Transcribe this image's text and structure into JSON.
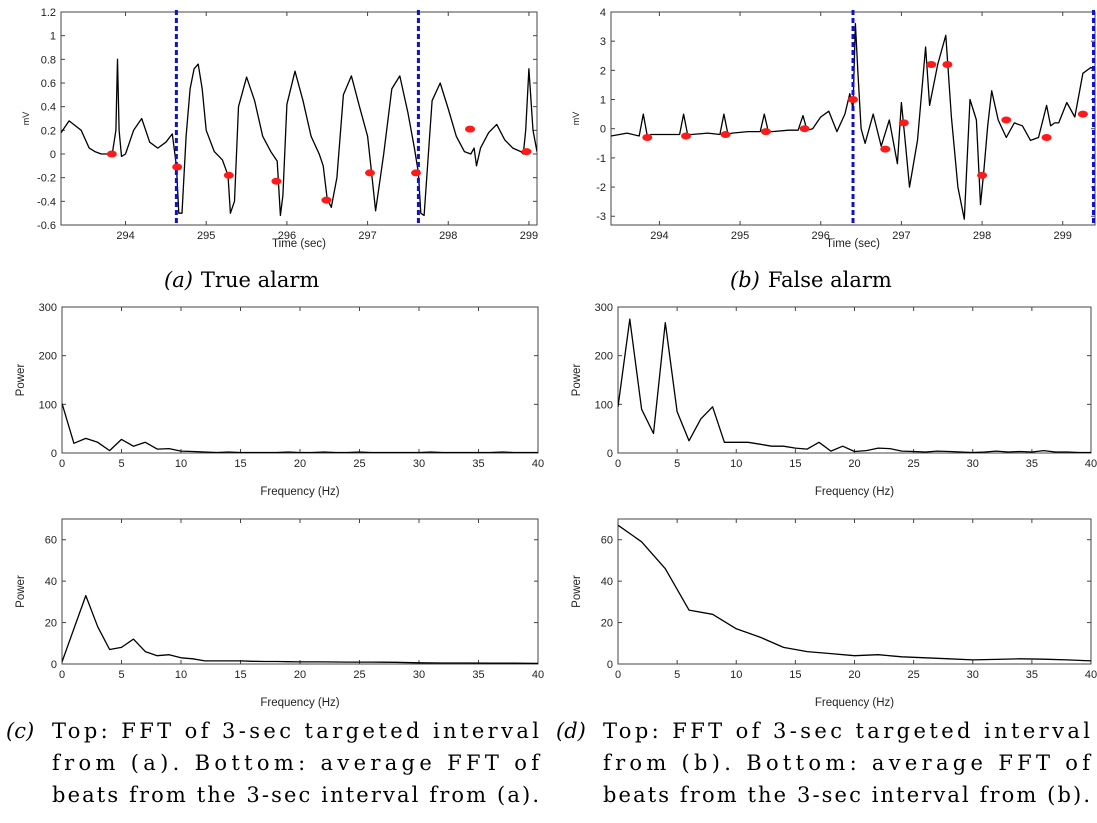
{
  "chart_data": [
    {
      "id": "a",
      "type": "line",
      "caption_label": "(a)",
      "caption": "True alarm",
      "xlabel": "Time (sec)",
      "ylabel": "mV",
      "xlim": [
        293.2,
        299.1
      ],
      "ylim": [
        -0.6,
        1.2
      ],
      "xticks": [
        294,
        295,
        296,
        297,
        298,
        299
      ],
      "yticks": [
        -0.6,
        -0.4,
        -0.2,
        0,
        0.2,
        0.4,
        0.6,
        0.8,
        1,
        1.2
      ],
      "line_color": "#000000",
      "alarm_window": [
        294.63,
        297.63
      ],
      "alarm_color": "#1010d0",
      "signal": {
        "x": [
          293.2,
          293.3,
          293.45,
          293.55,
          293.62,
          293.7,
          293.78,
          293.84,
          293.88,
          293.9,
          293.92,
          293.95,
          294.0,
          294.1,
          294.2,
          294.3,
          294.4,
          294.5,
          294.58,
          294.63,
          294.66,
          294.7,
          294.75,
          294.8,
          294.85,
          294.9,
          294.95,
          295.0,
          295.1,
          295.2,
          295.27,
          295.3,
          295.35,
          295.4,
          295.5,
          295.6,
          295.7,
          295.8,
          295.88,
          295.92,
          295.95,
          296.0,
          296.1,
          296.2,
          296.3,
          296.4,
          296.45,
          296.5,
          296.55,
          296.62,
          296.7,
          296.8,
          296.9,
          297.0,
          297.05,
          297.1,
          297.2,
          297.3,
          297.4,
          297.5,
          297.58,
          297.63,
          297.66,
          297.7,
          297.8,
          297.9,
          298.0,
          298.1,
          298.2,
          298.28,
          298.32,
          298.35,
          298.4,
          298.5,
          298.6,
          298.7,
          298.8,
          298.9,
          298.93,
          298.96,
          299.0,
          299.05,
          299.1
        ],
        "y": [
          0.18,
          0.28,
          0.2,
          0.05,
          0.02,
          0.0,
          0.0,
          0.02,
          0.2,
          0.8,
          0.2,
          -0.02,
          0.0,
          0.2,
          0.3,
          0.1,
          0.05,
          0.1,
          0.17,
          -0.1,
          -0.5,
          -0.5,
          0.15,
          0.55,
          0.72,
          0.76,
          0.55,
          0.2,
          0.02,
          -0.05,
          -0.18,
          -0.5,
          -0.4,
          0.4,
          0.65,
          0.45,
          0.15,
          0.02,
          -0.06,
          -0.52,
          -0.35,
          0.42,
          0.7,
          0.45,
          0.15,
          0.0,
          -0.1,
          -0.38,
          -0.45,
          -0.2,
          0.5,
          0.66,
          0.4,
          0.15,
          -0.16,
          -0.48,
          0.0,
          0.55,
          0.66,
          0.35,
          0.05,
          -0.16,
          -0.5,
          -0.52,
          0.45,
          0.6,
          0.38,
          0.15,
          0.02,
          0.0,
          0.05,
          -0.1,
          0.05,
          0.18,
          0.25,
          0.12,
          0.05,
          0.02,
          0.0,
          0.2,
          0.72,
          0.2,
          0.02
        ]
      },
      "markers": {
        "x": [
          293.83,
          294.64,
          295.28,
          295.87,
          296.49,
          297.03,
          297.6,
          298.27,
          298.97
        ],
        "y": [
          0.0,
          -0.11,
          -0.18,
          -0.23,
          -0.39,
          -0.16,
          -0.16,
          0.21,
          0.02
        ],
        "color": "#ff1a1a"
      }
    },
    {
      "id": "b",
      "type": "line",
      "caption_label": "(b)",
      "caption": "False alarm",
      "xlabel": "Time (sec)",
      "ylabel": "mV",
      "xlim": [
        293.4,
        299.4
      ],
      "ylim": [
        -3.3,
        4
      ],
      "xticks": [
        294,
        295,
        296,
        297,
        298,
        299
      ],
      "yticks": [
        -3,
        -2,
        -1,
        0,
        1,
        2,
        3,
        4
      ],
      "line_color": "#000000",
      "alarm_window": [
        296.4,
        299.4
      ],
      "alarm_color": "#1010d0",
      "signal": {
        "x": [
          293.4,
          293.6,
          293.75,
          293.8,
          293.85,
          293.9,
          294.1,
          294.25,
          294.3,
          294.35,
          294.4,
          294.6,
          294.75,
          294.8,
          294.85,
          294.9,
          295.1,
          295.25,
          295.3,
          295.35,
          295.4,
          295.6,
          295.72,
          295.78,
          295.83,
          295.9,
          296.0,
          296.1,
          296.2,
          296.3,
          296.36,
          296.4,
          296.43,
          296.46,
          296.5,
          296.55,
          296.65,
          296.75,
          296.85,
          296.95,
          297.0,
          297.05,
          297.1,
          297.2,
          297.3,
          297.35,
          297.45,
          297.55,
          297.62,
          297.7,
          297.78,
          297.85,
          297.93,
          297.98,
          298.02,
          298.07,
          298.12,
          298.2,
          298.3,
          298.4,
          298.5,
          298.6,
          298.7,
          298.8,
          298.85,
          298.9,
          298.95,
          299.05,
          299.15,
          299.25,
          299.35,
          299.4
        ],
        "y": [
          -0.25,
          -0.15,
          -0.25,
          0.5,
          -0.25,
          -0.2,
          -0.2,
          -0.2,
          0.5,
          -0.2,
          -0.2,
          -0.15,
          -0.2,
          0.5,
          -0.2,
          -0.15,
          -0.1,
          -0.1,
          0.5,
          -0.1,
          -0.1,
          -0.05,
          -0.05,
          0.45,
          -0.05,
          0.0,
          0.4,
          0.6,
          -0.1,
          0.5,
          1.2,
          0.7,
          3.6,
          2.0,
          0.0,
          -0.5,
          0.5,
          -0.6,
          0.3,
          -1.2,
          0.9,
          -0.5,
          -2.0,
          -0.4,
          2.8,
          0.8,
          2.2,
          3.2,
          0.4,
          -2.0,
          -3.1,
          1.0,
          0.3,
          -2.6,
          -1.5,
          0.1,
          1.3,
          0.3,
          -0.3,
          0.2,
          0.1,
          -0.4,
          -0.3,
          0.8,
          0.1,
          0.2,
          0.2,
          0.9,
          0.4,
          1.9,
          2.1,
          2.0
        ],
        "color": "#000000"
      },
      "markers": {
        "x": [
          293.85,
          294.33,
          294.82,
          295.32,
          295.8,
          296.4,
          296.8,
          297.03,
          297.37,
          297.57,
          298.0,
          298.3,
          298.8,
          299.25
        ],
        "y": [
          -0.3,
          -0.25,
          -0.2,
          -0.1,
          0.0,
          1.0,
          -0.7,
          0.2,
          2.2,
          2.2,
          -1.6,
          0.3,
          -0.3,
          0.5
        ],
        "color": "#ff1a1a"
      }
    },
    {
      "id": "c-top",
      "type": "line",
      "xlabel": "Frequency (Hz)",
      "ylabel": "Power",
      "xlim": [
        0,
        40
      ],
      "ylim": [
        0,
        300
      ],
      "xticks": [
        0,
        5,
        10,
        15,
        20,
        25,
        30,
        35,
        40
      ],
      "yticks": [
        0,
        100,
        200,
        300
      ],
      "x": [
        0,
        1,
        2,
        3,
        4,
        5,
        6,
        7,
        8,
        9,
        10,
        11,
        12,
        13,
        14,
        15,
        16,
        17,
        18,
        19,
        20,
        21,
        22,
        23,
        24,
        25,
        26,
        27,
        28,
        29,
        30,
        31,
        32,
        33,
        34,
        35,
        36,
        37,
        38,
        39,
        40
      ],
      "y": [
        102,
        20,
        30,
        22,
        5,
        28,
        14,
        22,
        8,
        9,
        4,
        3,
        2,
        1,
        2,
        1,
        1,
        1,
        1,
        2,
        1,
        1,
        2,
        1,
        1,
        2,
        1,
        1,
        1,
        1,
        1,
        2,
        1,
        1,
        1,
        1,
        1,
        2,
        1,
        1,
        1
      ]
    },
    {
      "id": "c-bottom",
      "type": "line",
      "xlabel": "Frequency (Hz)",
      "ylabel": "Power",
      "xlim": [
        0,
        40
      ],
      "ylim": [
        0,
        70
      ],
      "xticks": [
        0,
        5,
        10,
        15,
        20,
        25,
        30,
        35,
        40
      ],
      "yticks": [
        0,
        20,
        40,
        60
      ],
      "x": [
        0,
        2,
        3,
        4,
        5,
        6,
        7,
        8,
        9,
        10,
        11,
        12,
        13,
        14,
        15,
        16,
        17,
        18,
        19,
        20,
        22,
        24,
        26,
        28,
        30,
        32,
        34,
        36,
        38,
        40
      ],
      "y": [
        1,
        33,
        18,
        7,
        8,
        12,
        6,
        4,
        4.5,
        3,
        2.5,
        1.5,
        1.5,
        1.5,
        1.5,
        1.3,
        1.2,
        1.2,
        1.1,
        1,
        1,
        0.9,
        0.9,
        0.8,
        0.6,
        0.5,
        0.5,
        0.4,
        0.4,
        0.3
      ]
    },
    {
      "id": "d-top",
      "type": "line",
      "xlabel": "Frequency (Hz)",
      "ylabel": "Power",
      "xlim": [
        0,
        40
      ],
      "ylim": [
        0,
        300
      ],
      "xticks": [
        0,
        5,
        10,
        15,
        20,
        25,
        30,
        35,
        40
      ],
      "yticks": [
        0,
        100,
        200,
        300
      ],
      "x": [
        0,
        1,
        2,
        3,
        4,
        5,
        6,
        7,
        8,
        9,
        10,
        11,
        12,
        13,
        14,
        15,
        16,
        17,
        18,
        19,
        20,
        21,
        22,
        23,
        24,
        25,
        26,
        27,
        28,
        29,
        30,
        31,
        32,
        33,
        34,
        35,
        36,
        37,
        38,
        39,
        40
      ],
      "y": [
        95,
        275,
        90,
        40,
        268,
        85,
        25,
        70,
        95,
        22,
        22,
        22,
        18,
        14,
        14,
        10,
        8,
        22,
        4,
        14,
        3,
        5,
        10,
        9,
        4,
        3,
        2,
        4,
        3,
        2,
        1,
        2,
        4,
        2,
        3,
        2,
        5,
        2,
        2,
        1,
        1
      ]
    },
    {
      "id": "d-bottom",
      "type": "line",
      "xlabel": "Frequency (Hz)",
      "ylabel": "Power",
      "xlim": [
        0,
        40
      ],
      "ylim": [
        0,
        70
      ],
      "xticks": [
        0,
        5,
        10,
        15,
        20,
        25,
        30,
        35,
        40
      ],
      "yticks": [
        0,
        20,
        40,
        60
      ],
      "x": [
        0,
        2,
        4,
        6,
        8,
        10,
        12,
        14,
        16,
        18,
        20,
        22,
        24,
        26,
        28,
        30,
        32,
        34,
        36,
        38,
        40
      ],
      "y": [
        67,
        59,
        46,
        26,
        24,
        17,
        13,
        8,
        6,
        5,
        4,
        4.5,
        3.5,
        3,
        2.5,
        2,
        2.2,
        2.5,
        2.3,
        2,
        1.5
      ]
    }
  ],
  "captions": {
    "c": {
      "label": "(c)",
      "lines": [
        "Top:  FFT of 3-sec targeted interval",
        "from (a).  Bottom: average FFT of",
        "beats from the 3-sec interval from (a)."
      ]
    },
    "d": {
      "label": "(d)",
      "lines": [
        "Top:  FFT of 3-sec targeted interval",
        "from (b).  Bottom: average FFT of",
        "beats from the 3-sec interval from (b)."
      ]
    }
  }
}
